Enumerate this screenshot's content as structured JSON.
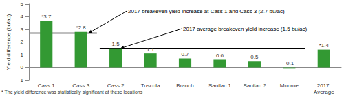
{
  "chart_data": {
    "type": "bar",
    "y_label": "Yield difference (bu/ac)",
    "categories": [
      "Cass 1",
      "Cass 3",
      "Cass 2",
      "Tuscola",
      "Branch",
      "Sanilac 1",
      "Sanilac 2",
      "Monroe",
      "2017 Average"
    ],
    "values": [
      3.7,
      2.8,
      1.5,
      1.1,
      0.7,
      0.6,
      0.5,
      -0.1,
      1.4
    ],
    "value_labels": [
      "*3.7",
      "*2.8",
      "1.5",
      "1.1",
      "0.7",
      "0.6",
      "0.5",
      "-0.1",
      "*1.4"
    ],
    "data_labels": true,
    "color": "#339933",
    "ylim": [
      -1,
      5
    ],
    "yticks": [
      -1,
      0,
      1,
      2,
      3,
      4,
      5
    ],
    "grid": false,
    "annotations": [
      {
        "text": "2017 breakeven yield increase at Cass 1 and Cass 3 (2.7 bu/ac)",
        "value": 2.7,
        "from": "Cass 1",
        "to": "Cass 3"
      },
      {
        "text": "2017 average breakeven yield increase (1.5 bu/ac)",
        "value": 1.5,
        "from": "Cass 2",
        "to": "Monroe"
      }
    ],
    "footnote": "* The yield difference was statistically significant at these locations"
  }
}
